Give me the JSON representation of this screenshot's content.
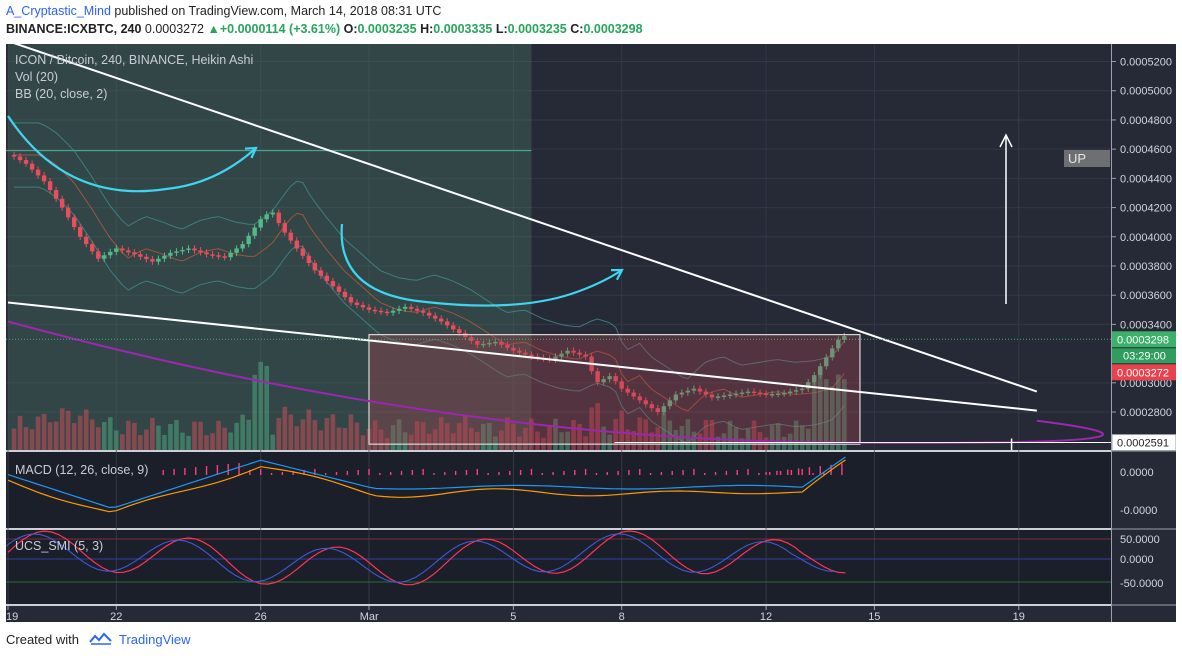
{
  "header": {
    "author": "A_Cryptastic_Mind",
    "published": "published on TradingView.com, March 14, 2018 08:31 UTC",
    "symbol_line": "BINANCE:ICXBTC, 240",
    "last": "0.0003272",
    "change": "+0.0000114 (+3.61%)",
    "o_label": "O:",
    "o": "0.0003235",
    "h_label": "H:",
    "h": "0.0003335",
    "l_label": "L:",
    "l": "0.0003235",
    "c_label": "C:",
    "c": "0.0003298"
  },
  "panes": {
    "main_title": "ICON / Bitcoin, 240, BINANCE, Heikin Ashi",
    "vol_title": "Vol (20)",
    "bb_title": "BB (20, close, 2)",
    "macd_title": "MACD (12, 26, close, 9)",
    "smi_title": "UCS_SMI (5, 3)"
  },
  "footer": {
    "created": "Created with",
    "brand": "TradingView"
  },
  "chart_data": {
    "type": "candlestick",
    "chart_style": "Heikin Ashi",
    "x_ticks": [
      "19",
      "22",
      "26",
      "Mar",
      "5",
      "8",
      "12",
      "15",
      "19"
    ],
    "x_tick_days": [
      0,
      3,
      7,
      10,
      14,
      17,
      21,
      24,
      28
    ],
    "y_ticks": [
      "0.0005200",
      "0.0005000",
      "0.0004800",
      "0.0004600",
      "0.0004400",
      "0.0004200",
      "0.0004000",
      "0.0003800",
      "0.0003600",
      "0.0003400",
      "0.0003000",
      "0.0002800"
    ],
    "ylim": [
      0.000254,
      0.000532
    ],
    "price_labels": {
      "close": "0.0003298",
      "countdown": "03:29:00",
      "last": "0.0003272",
      "support": "0.0002591"
    },
    "close_path": [
      [
        0.1,
        0.000456
      ],
      [
        0.5,
        0.00045
      ],
      [
        1.0,
        0.000438
      ],
      [
        1.5,
        0.00042
      ],
      [
        2.0,
        0.0004
      ],
      [
        2.5,
        0.000385
      ],
      [
        3.0,
        0.000392
      ],
      [
        3.5,
        0.000388
      ],
      [
        4.0,
        0.000383
      ],
      [
        4.5,
        0.000389
      ],
      [
        5.0,
        0.000392
      ],
      [
        5.5,
        0.000388
      ],
      [
        6.0,
        0.000386
      ],
      [
        6.5,
        0.000395
      ],
      [
        7.0,
        0.000412
      ],
      [
        7.3,
        0.000418
      ],
      [
        7.6,
        0.000405
      ],
      [
        8.0,
        0.000392
      ],
      [
        8.5,
        0.000377
      ],
      [
        9.0,
        0.000366
      ],
      [
        9.5,
        0.000355
      ],
      [
        10.0,
        0.00035
      ],
      [
        10.5,
        0.000348
      ],
      [
        11.0,
        0.000352
      ],
      [
        11.5,
        0.000348
      ],
      [
        12.0,
        0.000342
      ],
      [
        12.5,
        0.000334
      ],
      [
        13.0,
        0.000326
      ],
      [
        13.5,
        0.000328
      ],
      [
        14.0,
        0.000322
      ],
      [
        14.5,
        0.000318
      ],
      [
        15.0,
        0.000316
      ],
      [
        15.5,
        0.000322
      ],
      [
        16.0,
        0.000318
      ],
      [
        16.3,
        0.0003
      ],
      [
        16.7,
        0.000305
      ],
      [
        17.0,
        0.000296
      ],
      [
        17.5,
        0.000288
      ],
      [
        18.0,
        0.00028
      ],
      [
        18.5,
        0.000292
      ],
      [
        19.0,
        0.000296
      ],
      [
        19.5,
        0.00029
      ],
      [
        20.0,
        0.000292
      ],
      [
        20.5,
        0.000294
      ],
      [
        21.0,
        0.000292
      ],
      [
        21.5,
        0.000293
      ],
      [
        22.0,
        0.000296
      ],
      [
        22.3,
        0.000304
      ],
      [
        22.6,
        0.000315
      ],
      [
        22.9,
        0.000326
      ],
      [
        23.1,
        0.000333
      ],
      [
        23.3,
        0.00033
      ]
    ],
    "annotations": {
      "up_label": "UP",
      "channel_box_days": [
        10.0,
        23.6
      ],
      "channel_box_prices": [
        0.000258,
        0.000333
      ],
      "shaded_range_days": [
        0,
        14.5
      ],
      "descending_line": [
        [
          0,
          0.000534
        ],
        [
          28.5,
          0.000294
        ]
      ],
      "support_line": [
        [
          0,
          0.000355
        ],
        [
          28.5,
          0.000281
        ]
      ],
      "purple_curve": [
        [
          0,
          0.000342
        ],
        [
          12,
          0.000273
        ],
        [
          23,
          0.000259
        ],
        [
          28.5,
          0.000274
        ]
      ]
    },
    "macd": {
      "title": "MACD (12, 26, close, 9)",
      "y_ticks": [
        "0.0000",
        "-0.0000"
      ]
    },
    "smi": {
      "title": "UCS_SMI (5, 3)",
      "y_ticks": [
        "50.0000",
        "0.0000",
        "-50.0000"
      ]
    },
    "colors": {
      "background": "#262a36",
      "up": "#53b987",
      "down": "#eb4d5c",
      "trendline": "#ffffff",
      "purple": "#9c27b0",
      "arrow_cyan": "#3fd5f0",
      "grid": "#343846"
    }
  }
}
